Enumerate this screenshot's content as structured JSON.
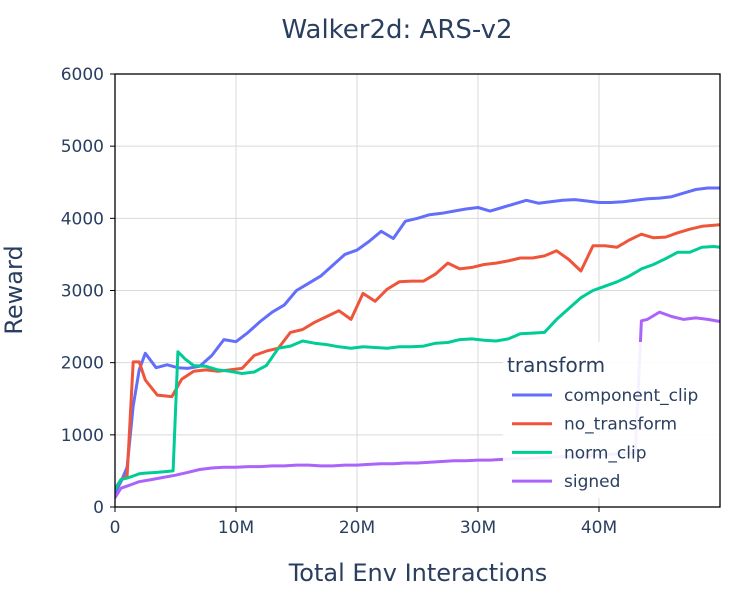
{
  "chart_data": {
    "type": "line",
    "title": "Walker2d: ARS-v2",
    "xlabel": "Total Env Interactions",
    "ylabel": "Reward",
    "xlim": [
      0,
      50000000
    ],
    "ylim": [
      0,
      6000
    ],
    "xticks": [
      0,
      10000000,
      20000000,
      30000000,
      40000000
    ],
    "xtick_labels": [
      "0",
      "10M",
      "20M",
      "30M",
      "40M"
    ],
    "yticks": [
      0,
      1000,
      2000,
      3000,
      4000,
      5000,
      6000
    ],
    "ytick_labels": [
      "0",
      "1000",
      "2000",
      "3000",
      "4000",
      "5000",
      "6000"
    ],
    "grid": true,
    "legend": {
      "title": "transform",
      "position": "right"
    },
    "series": [
      {
        "name": "component_clip",
        "color": "#636efa",
        "x": [
          0,
          500000,
          1000000,
          1500000,
          2000000,
          2500000,
          3400000,
          4300000,
          5200000,
          6000000,
          7000000,
          8000000,
          9000000,
          10000000,
          11000000,
          12000000,
          13000000,
          14000000,
          15000000,
          16000000,
          17000000,
          18000000,
          19000000,
          20000000,
          21000000,
          22000000,
          23000000,
          24000000,
          25000000,
          26000000,
          27000000,
          28000000,
          29000000,
          30000000,
          31000000,
          32000000,
          33000000,
          34000000,
          35000000,
          36000000,
          37000000,
          38000000,
          39000000,
          40000000,
          41000000,
          42000000,
          43000000,
          44000000,
          45000000,
          46000000,
          47000000,
          48000000,
          49000000,
          50000000
        ],
        "y": [
          200,
          350,
          550,
          1400,
          1900,
          2130,
          1930,
          1970,
          1930,
          1920,
          1950,
          2100,
          2320,
          2290,
          2420,
          2570,
          2700,
          2800,
          3000,
          3100,
          3200,
          3350,
          3500,
          3560,
          3680,
          3820,
          3720,
          3960,
          4000,
          4050,
          4070,
          4100,
          4130,
          4150,
          4100,
          4150,
          4200,
          4250,
          4210,
          4230,
          4250,
          4260,
          4240,
          4220,
          4220,
          4230,
          4250,
          4270,
          4280,
          4300,
          4350,
          4400,
          4420,
          4420
        ]
      },
      {
        "name": "no_transform",
        "color": "#ef553b",
        "x": [
          0,
          500000,
          1000000,
          1500000,
          2000000,
          2500000,
          3500000,
          4700000,
          5500000,
          6500000,
          7500000,
          8500000,
          9500000,
          10500000,
          11500000,
          12500000,
          13500000,
          14500000,
          15500000,
          16500000,
          17500000,
          18500000,
          19500000,
          20500000,
          21500000,
          22500000,
          23500000,
          24500000,
          25500000,
          26500000,
          27500000,
          28500000,
          29500000,
          30500000,
          31500000,
          32500000,
          33500000,
          34500000,
          35500000,
          36500000,
          37500000,
          38500000,
          39500000,
          40500000,
          41500000,
          42500000,
          43500000,
          44500000,
          45500000,
          46500000,
          47500000,
          48500000,
          50000000
        ],
        "y": [
          250,
          380,
          430,
          2010,
          2010,
          1760,
          1550,
          1530,
          1770,
          1880,
          1900,
          1880,
          1900,
          1920,
          2100,
          2160,
          2200,
          2420,
          2460,
          2560,
          2640,
          2720,
          2600,
          2960,
          2850,
          3020,
          3120,
          3130,
          3130,
          3230,
          3380,
          3300,
          3320,
          3360,
          3380,
          3410,
          3450,
          3450,
          3480,
          3550,
          3430,
          3270,
          3620,
          3620,
          3600,
          3700,
          3780,
          3730,
          3740,
          3800,
          3850,
          3890,
          3910
        ]
      },
      {
        "name": "norm_clip",
        "color": "#00cc96",
        "x": [
          0,
          500000,
          1000000,
          1500000,
          2000000,
          2500000,
          3500000,
          4800000,
          5200000,
          5800000,
          6500000,
          7500000,
          8500000,
          9500000,
          10500000,
          11500000,
          12500000,
          13500000,
          14500000,
          15500000,
          16500000,
          17500000,
          18500000,
          19500000,
          20500000,
          21500000,
          22500000,
          23500000,
          24500000,
          25500000,
          26500000,
          27500000,
          28500000,
          29500000,
          30500000,
          31500000,
          32500000,
          33500000,
          34500000,
          35500000,
          36500000,
          37500000,
          38500000,
          39500000,
          40500000,
          41500000,
          42500000,
          43500000,
          44500000,
          45500000,
          46500000,
          47500000,
          48500000,
          49500000,
          50000000
        ],
        "y": [
          250,
          380,
          400,
          430,
          460,
          470,
          480,
          500,
          2150,
          2050,
          1960,
          1950,
          1900,
          1880,
          1850,
          1870,
          1960,
          2200,
          2230,
          2300,
          2270,
          2250,
          2220,
          2200,
          2220,
          2210,
          2200,
          2220,
          2220,
          2230,
          2270,
          2280,
          2320,
          2330,
          2310,
          2300,
          2330,
          2400,
          2410,
          2420,
          2600,
          2750,
          2900,
          3000,
          3060,
          3120,
          3200,
          3300,
          3360,
          3440,
          3530,
          3530,
          3600,
          3610,
          3600
        ]
      },
      {
        "name": "signed",
        "color": "#ab63fa",
        "x": [
          0,
          500000,
          1000000,
          1500000,
          2000000,
          3000000,
          4000000,
          5000000,
          6000000,
          7000000,
          8000000,
          9000000,
          10000000,
          11000000,
          12000000,
          13000000,
          14000000,
          15000000,
          16000000,
          17000000,
          18000000,
          19000000,
          20000000,
          21000000,
          22000000,
          23000000,
          24000000,
          25000000,
          26000000,
          27000000,
          28000000,
          29000000,
          30000000,
          31000000,
          32000000,
          33000000,
          34000000,
          35000000,
          36000000,
          37000000,
          38000000,
          39000000,
          40000000,
          41000000,
          42000000,
          43000000,
          43500000,
          44000000,
          45000000,
          46000000,
          47000000,
          48000000,
          49000000,
          50000000
        ],
        "y": [
          130,
          260,
          290,
          320,
          350,
          380,
          410,
          440,
          480,
          520,
          540,
          550,
          550,
          560,
          560,
          570,
          570,
          580,
          580,
          570,
          570,
          580,
          580,
          590,
          600,
          600,
          610,
          610,
          620,
          630,
          640,
          640,
          650,
          650,
          660,
          670,
          670,
          680,
          690,
          700,
          700,
          710,
          720,
          730,
          740,
          750,
          2580,
          2600,
          2700,
          2640,
          2600,
          2620,
          2600,
          2570
        ]
      }
    ]
  }
}
